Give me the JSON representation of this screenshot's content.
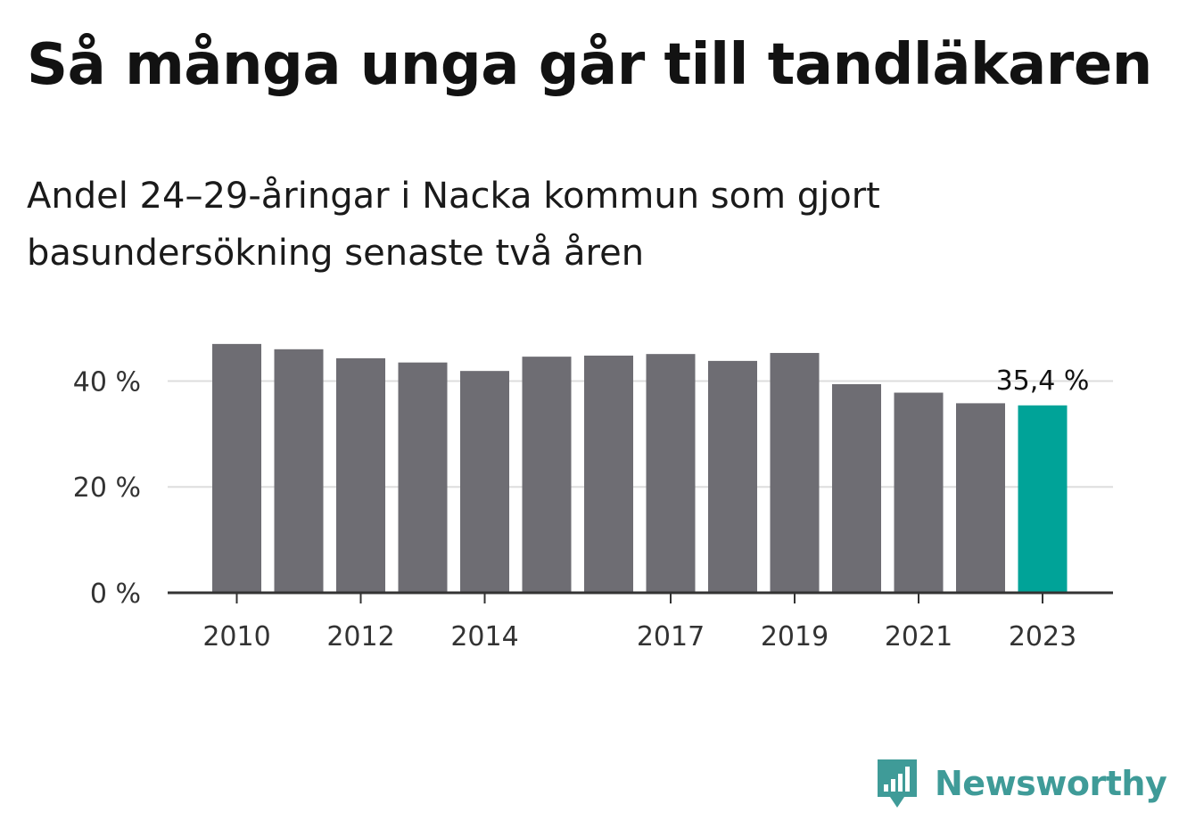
{
  "header": {
    "title": "Så många unga går till tandläkaren",
    "subtitle": "Andel 24–29-åringar i Nacka kommun som gjort basundersökning senaste två åren"
  },
  "chart_data": {
    "type": "bar",
    "categories": [
      "2010",
      "2011",
      "2012",
      "2013",
      "2014",
      "2015",
      "2016",
      "2017",
      "2018",
      "2019",
      "2020",
      "2021",
      "2022",
      "2023"
    ],
    "series": [
      {
        "values": [
          47.0,
          46.0,
          44.3,
          43.5,
          41.9,
          44.6,
          44.8,
          45.1,
          43.8,
          45.3,
          39.4,
          37.8,
          35.8,
          35.4
        ]
      }
    ],
    "x_tick_labels": [
      "2010",
      "2012",
      "2014",
      "2017",
      "2019",
      "2021",
      "2023"
    ],
    "y_ticks": [
      {
        "value": 0,
        "label": "0 %"
      },
      {
        "value": 20,
        "label": "20 %"
      },
      {
        "value": 40,
        "label": "40 %"
      }
    ],
    "ylim": [
      0,
      49
    ],
    "highlight": {
      "category": "2023",
      "label": "35,4 %"
    },
    "grid": true,
    "colors": {
      "bar": "#6e6d73",
      "highlight": "#00a398",
      "grid": "#dddddd",
      "axis": "#333333"
    }
  },
  "brand": {
    "name": "Newsworthy",
    "logo_icon": "bar-chart-speech-bubble-icon",
    "color": "#3f9b98"
  }
}
